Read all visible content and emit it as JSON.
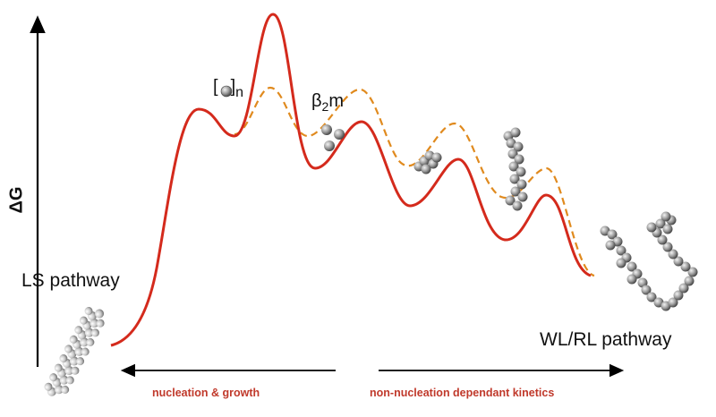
{
  "labels": {
    "y_axis": "ΔG",
    "ls_pathway": "LS pathway",
    "wl_rl_pathway": "WL/RL pathway",
    "monomer_prefix": "β",
    "monomer_sub": "2",
    "monomer_suffix": "m",
    "oligomer_n": "n",
    "oligomer_open": "[",
    "oligomer_close": "]"
  },
  "captions": {
    "left": "nucleation & growth",
    "right": "non-nucleation dependant kinetics"
  },
  "colors": {
    "solid_curve": "#d42a1c",
    "dashed_curve": "#e08a1e",
    "caption_text": "#c0392b",
    "axis": "#000000",
    "sphere_fill": "#8c8c8c"
  }
}
